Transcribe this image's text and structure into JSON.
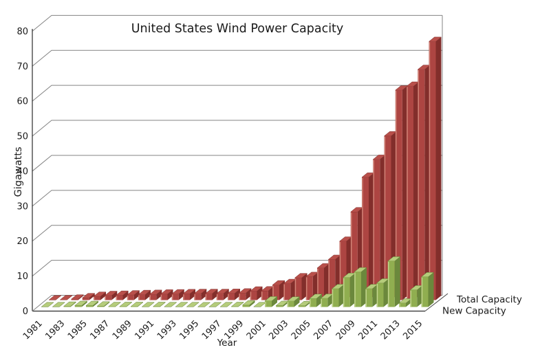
{
  "title": "United States Wind Power Capacity",
  "axis": {
    "ylabel": "Gigawatts",
    "xlabel": "Year"
  },
  "legend": {
    "total": "Total Capacity",
    "new": "New Capacity"
  },
  "colors": {
    "background": "#ffffff",
    "grid": "#838383",
    "axis": "#2a2a2a",
    "corner_line": "#444444",
    "text": "#1a1a1a",
    "red_front": "#ad4542",
    "red_side": "#822e2b",
    "red_top": "#b8504b",
    "red_edge": "#7c2a27",
    "red_highlight": "#d89183",
    "green_front": "#90ae50",
    "green_side": "#6b883c",
    "green_top": "#b5cc7b",
    "green_edge": "#5f7c33",
    "green_highlight": "#ccdd9a"
  },
  "chart_data": {
    "type": "bar",
    "style": "3d-perspective-bars",
    "title": "United States Wind Power Capacity",
    "xlabel": "Year",
    "ylabel": "Gigawatts",
    "ylim": [
      0,
      80
    ],
    "yticks": [
      0,
      10,
      20,
      30,
      40,
      50,
      60,
      70,
      80
    ],
    "xtick_years": [
      1981,
      1983,
      1985,
      1987,
      1989,
      1991,
      1993,
      1995,
      1997,
      1999,
      2001,
      2003,
      2005,
      2007,
      2009,
      2011,
      2013,
      2015
    ],
    "years": [
      1981,
      1982,
      1983,
      1984,
      1985,
      1986,
      1987,
      1988,
      1989,
      1990,
      1991,
      1992,
      1993,
      1994,
      1995,
      1996,
      1997,
      1998,
      1999,
      2000,
      2001,
      2002,
      2003,
      2004,
      2005,
      2006,
      2007,
      2008,
      2009,
      2010,
      2011,
      2012,
      2013,
      2014,
      2015
    ],
    "series": [
      {
        "name": "Total Capacity",
        "row": "back",
        "color_key": "red",
        "values": [
          0.03,
          0.07,
          0.25,
          0.65,
          1.04,
          1.27,
          1.35,
          1.45,
          1.55,
          1.6,
          1.7,
          1.75,
          1.8,
          1.85,
          1.85,
          1.85,
          1.9,
          2.0,
          2.55,
          2.6,
          4.3,
          4.7,
          6.35,
          6.7,
          9.15,
          11.6,
          16.8,
          25.2,
          35.1,
          40.2,
          46.9,
          60.0,
          61.1,
          65.9,
          73.9
        ]
      },
      {
        "name": "New Capacity",
        "row": "front",
        "color_key": "green",
        "values": [
          0.03,
          0.04,
          0.18,
          0.4,
          0.39,
          0.23,
          0.08,
          0.1,
          0.1,
          0.05,
          0.1,
          0.05,
          0.05,
          0.05,
          0.02,
          0.02,
          0.05,
          0.1,
          0.55,
          0.05,
          1.7,
          0.4,
          1.65,
          0.35,
          2.4,
          2.45,
          5.2,
          8.4,
          10.0,
          5.2,
          6.8,
          13.1,
          1.1,
          4.85,
          8.6
        ]
      }
    ],
    "legend_position": "right-of-floor-corner",
    "grid": true
  }
}
